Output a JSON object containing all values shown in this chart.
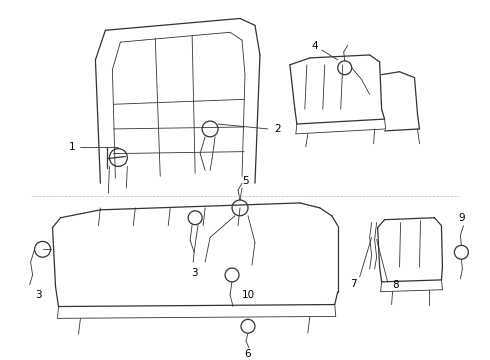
{
  "background_color": "#ffffff",
  "line_color": "#333333",
  "fig_width": 4.9,
  "fig_height": 3.6,
  "dpi": 100
}
